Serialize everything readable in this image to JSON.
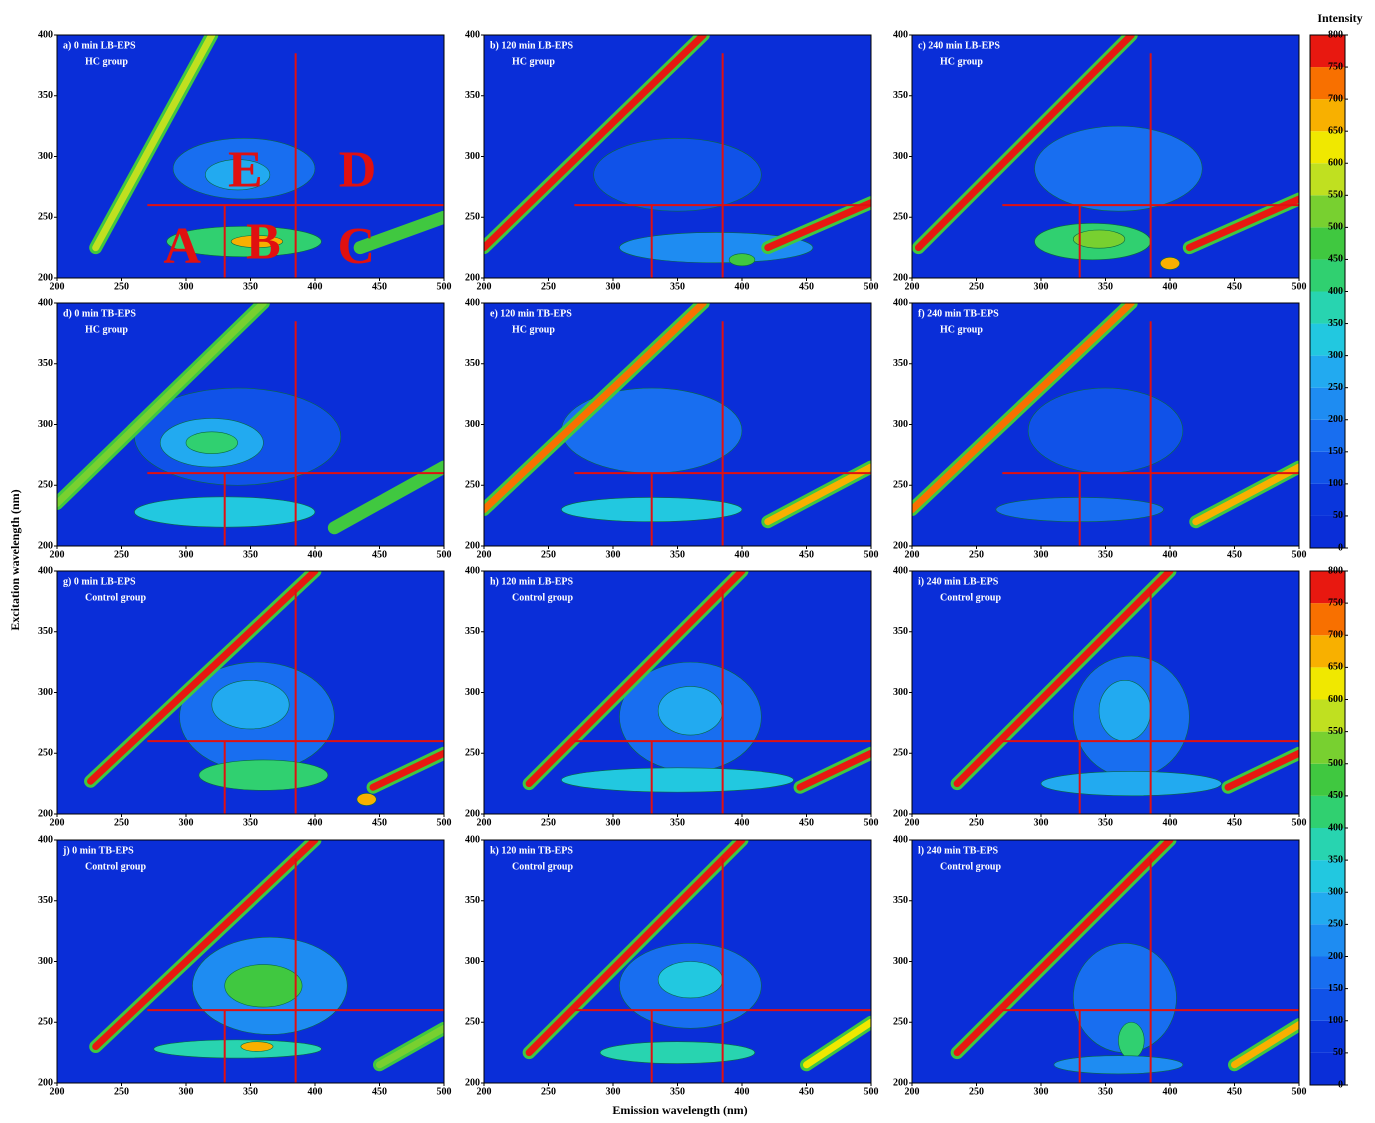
{
  "figure": {
    "xlabel": "Emission wavelength (nm)",
    "ylabel": "Excitation wavelength (nm)",
    "colorbar": {
      "title": "Intensity",
      "ticks": [
        0,
        50,
        100,
        150,
        200,
        250,
        300,
        350,
        400,
        450,
        500,
        550,
        600,
        650,
        700,
        750,
        800
      ],
      "colors": [
        "#0a2ed8",
        "#0a36dc",
        "#1052e8",
        "#186ef0",
        "#1e8cf2",
        "#22aaf0",
        "#22c8e0",
        "#28d4b0",
        "#30d070",
        "#40c840",
        "#78d030",
        "#c0e020",
        "#f0e800",
        "#f8b000",
        "#f87000",
        "#e81810"
      ]
    },
    "region_lines": [
      {
        "em": [
          270,
          500
        ],
        "ex": [
          260,
          260
        ]
      },
      {
        "em": [
          385,
          385
        ],
        "ex": [
          200,
          385
        ]
      },
      {
        "em": [
          330,
          330
        ],
        "ex": [
          200,
          260
        ]
      }
    ]
  },
  "chart_data": [
    {
      "type": "contour",
      "title": "a) 0 min LB-EPS",
      "subtitle": "HC group",
      "xlim": [
        200,
        500
      ],
      "ylim": [
        200,
        400
      ],
      "xticks": [
        200,
        250,
        300,
        350,
        400,
        450,
        500
      ],
      "yticks": [
        200,
        250,
        300,
        350,
        400
      ],
      "ridges": [
        {
          "em": [
            230,
            320
          ],
          "ex": [
            225,
            400
          ],
          "value": 550
        },
        {
          "em": [
            435,
            500
          ],
          "ex": [
            225,
            250
          ],
          "value": 450
        }
      ],
      "peaks": [
        {
          "em": 345,
          "ex": 290,
          "w": 110,
          "h": 50,
          "value": 150
        },
        {
          "em": 340,
          "ex": 285,
          "w": 50,
          "h": 25,
          "value": 250
        },
        {
          "em": 345,
          "ex": 230,
          "w": 120,
          "h": 25,
          "value": 400
        },
        {
          "em": 355,
          "ex": 230,
          "w": 40,
          "h": 10,
          "value": 650
        }
      ],
      "region_labels": [
        {
          "text": "A",
          "em": 297,
          "ex": 222
        },
        {
          "text": "B",
          "em": 360,
          "ex": 226
        },
        {
          "text": "C",
          "em": 432,
          "ex": 222
        },
        {
          "text": "E",
          "em": 346,
          "ex": 285
        },
        {
          "text": "D",
          "em": 433,
          "ex": 285
        }
      ]
    },
    {
      "type": "contour",
      "title": "b) 120 min LB-EPS",
      "subtitle": "HC group",
      "xlim": [
        200,
        500
      ],
      "ylim": [
        200,
        400
      ],
      "xticks": [
        200,
        250,
        300,
        350,
        400,
        450,
        500
      ],
      "yticks": [
        200,
        250,
        300,
        350,
        400
      ],
      "ridges": [
        {
          "em": [
            200,
            370
          ],
          "ex": [
            225,
            400
          ],
          "value": 800
        },
        {
          "em": [
            420,
            500
          ],
          "ex": [
            225,
            262
          ],
          "value": 800
        }
      ],
      "peaks": [
        {
          "em": 350,
          "ex": 285,
          "w": 130,
          "h": 60,
          "value": 120
        },
        {
          "em": 380,
          "ex": 225,
          "w": 150,
          "h": 25,
          "value": 200
        },
        {
          "em": 400,
          "ex": 215,
          "w": 20,
          "h": 10,
          "value": 450
        }
      ]
    },
    {
      "type": "contour",
      "title": "c) 240 min LB-EPS",
      "subtitle": "HC group",
      "xlim": [
        200,
        500
      ],
      "ylim": [
        200,
        400
      ],
      "xticks": [
        200,
        250,
        300,
        350,
        400,
        450,
        500
      ],
      "yticks": [
        200,
        250,
        300,
        350,
        400
      ],
      "ridges": [
        {
          "em": [
            205,
            370
          ],
          "ex": [
            225,
            400
          ],
          "value": 800
        },
        {
          "em": [
            415,
            500
          ],
          "ex": [
            225,
            265
          ],
          "value": 800
        }
      ],
      "peaks": [
        {
          "em": 360,
          "ex": 290,
          "w": 130,
          "h": 70,
          "value": 150
        },
        {
          "em": 340,
          "ex": 230,
          "w": 90,
          "h": 30,
          "value": 400
        },
        {
          "em": 345,
          "ex": 232,
          "w": 40,
          "h": 15,
          "value": 500
        },
        {
          "em": 400,
          "ex": 212,
          "w": 15,
          "h": 10,
          "value": 650
        }
      ]
    },
    {
      "type": "contour",
      "title": "d) 0 min TB-EPS",
      "subtitle": "HC group",
      "xlim": [
        200,
        500
      ],
      "ylim": [
        200,
        400
      ],
      "xticks": [
        200,
        250,
        300,
        350,
        400,
        450,
        500
      ],
      "yticks": [
        200,
        250,
        300,
        350,
        400
      ],
      "ridges": [
        {
          "em": [
            200,
            360
          ],
          "ex": [
            235,
            400
          ],
          "value": 500
        },
        {
          "em": [
            415,
            500
          ],
          "ex": [
            215,
            265
          ],
          "value": 450
        }
      ],
      "peaks": [
        {
          "em": 340,
          "ex": 290,
          "w": 160,
          "h": 80,
          "value": 120
        },
        {
          "em": 320,
          "ex": 285,
          "w": 80,
          "h": 40,
          "value": 250
        },
        {
          "em": 320,
          "ex": 285,
          "w": 40,
          "h": 18,
          "value": 400
        },
        {
          "em": 330,
          "ex": 228,
          "w": 140,
          "h": 25,
          "value": 300
        }
      ]
    },
    {
      "type": "contour",
      "title": "e) 120 min TB-EPS",
      "subtitle": "HC group",
      "xlim": [
        200,
        500
      ],
      "ylim": [
        200,
        400
      ],
      "xticks": [
        200,
        250,
        300,
        350,
        400,
        450,
        500
      ],
      "yticks": [
        200,
        250,
        300,
        350,
        400
      ],
      "ridges": [
        {
          "em": [
            200,
            370
          ],
          "ex": [
            230,
            400
          ],
          "value": 700
        },
        {
          "em": [
            420,
            500
          ],
          "ex": [
            220,
            265
          ],
          "value": 650
        }
      ],
      "peaks": [
        {
          "em": 330,
          "ex": 295,
          "w": 140,
          "h": 70,
          "value": 150
        },
        {
          "em": 330,
          "ex": 230,
          "w": 140,
          "h": 20,
          "value": 300
        }
      ]
    },
    {
      "type": "contour",
      "title": "f) 240 min TB-EPS",
      "subtitle": "HC group",
      "xlim": [
        200,
        500
      ],
      "ylim": [
        200,
        400
      ],
      "xticks": [
        200,
        250,
        300,
        350,
        400,
        450,
        500
      ],
      "yticks": [
        200,
        250,
        300,
        350,
        400
      ],
      "ridges": [
        {
          "em": [
            200,
            370
          ],
          "ex": [
            230,
            400
          ],
          "value": 700
        },
        {
          "em": [
            420,
            500
          ],
          "ex": [
            220,
            265
          ],
          "value": 650
        }
      ],
      "peaks": [
        {
          "em": 350,
          "ex": 295,
          "w": 120,
          "h": 70,
          "value": 120
        },
        {
          "em": 330,
          "ex": 230,
          "w": 130,
          "h": 20,
          "value": 150
        }
      ]
    },
    {
      "type": "contour",
      "title": "g) 0 min LB-EPS",
      "subtitle": "Control group",
      "xlim": [
        200,
        500
      ],
      "ylim": [
        200,
        400
      ],
      "xticks": [
        200,
        250,
        300,
        350,
        400,
        450,
        500
      ],
      "yticks": [
        200,
        250,
        300,
        350,
        400
      ],
      "ridges": [
        {
          "em": [
            226,
            400
          ],
          "ex": [
            227,
            400
          ],
          "value": 800
        },
        {
          "em": [
            445,
            500
          ],
          "ex": [
            222,
            250
          ],
          "value": 800
        }
      ],
      "peaks": [
        {
          "em": 355,
          "ex": 280,
          "w": 120,
          "h": 90,
          "value": 150
        },
        {
          "em": 350,
          "ex": 290,
          "w": 60,
          "h": 40,
          "value": 250
        },
        {
          "em": 360,
          "ex": 232,
          "w": 100,
          "h": 25,
          "value": 400
        },
        {
          "em": 440,
          "ex": 212,
          "w": 15,
          "h": 10,
          "value": 650
        }
      ]
    },
    {
      "type": "contour",
      "title": "h) 120 min LB-EPS",
      "subtitle": "Control group",
      "xlim": [
        200,
        500
      ],
      "ylim": [
        200,
        400
      ],
      "xticks": [
        200,
        250,
        300,
        350,
        400,
        450,
        500
      ],
      "yticks": [
        200,
        250,
        300,
        350,
        400
      ],
      "ridges": [
        {
          "em": [
            235,
            400
          ],
          "ex": [
            225,
            400
          ],
          "value": 800
        },
        {
          "em": [
            445,
            500
          ],
          "ex": [
            222,
            250
          ],
          "value": 800
        }
      ],
      "peaks": [
        {
          "em": 360,
          "ex": 280,
          "w": 110,
          "h": 90,
          "value": 150
        },
        {
          "em": 360,
          "ex": 285,
          "w": 50,
          "h": 40,
          "value": 250
        },
        {
          "em": 350,
          "ex": 228,
          "w": 180,
          "h": 20,
          "value": 300
        }
      ]
    },
    {
      "type": "contour",
      "title": "i) 240 min LB-EPS",
      "subtitle": "Control group",
      "xlim": [
        200,
        500
      ],
      "ylim": [
        200,
        400
      ],
      "xticks": [
        200,
        250,
        300,
        350,
        400,
        450,
        500
      ],
      "yticks": [
        200,
        250,
        300,
        350,
        400
      ],
      "ridges": [
        {
          "em": [
            235,
            400
          ],
          "ex": [
            225,
            400
          ],
          "value": 800
        },
        {
          "em": [
            445,
            500
          ],
          "ex": [
            222,
            250
          ],
          "value": 800
        }
      ],
      "peaks": [
        {
          "em": 370,
          "ex": 280,
          "w": 90,
          "h": 100,
          "value": 150
        },
        {
          "em": 365,
          "ex": 285,
          "w": 40,
          "h": 50,
          "value": 250
        },
        {
          "em": 370,
          "ex": 225,
          "w": 140,
          "h": 20,
          "value": 250
        }
      ]
    },
    {
      "type": "contour",
      "title": "j) 0 min TB-EPS",
      "subtitle": "Control group",
      "xlim": [
        200,
        500
      ],
      "ylim": [
        200,
        400
      ],
      "xticks": [
        200,
        250,
        300,
        350,
        400,
        450,
        500
      ],
      "yticks": [
        200,
        250,
        300,
        350,
        400
      ],
      "ridges": [
        {
          "em": [
            230,
            400
          ],
          "ex": [
            230,
            400
          ],
          "value": 750
        },
        {
          "em": [
            450,
            500
          ],
          "ex": [
            215,
            245
          ],
          "value": 500
        }
      ],
      "peaks": [
        {
          "em": 365,
          "ex": 280,
          "w": 120,
          "h": 80,
          "value": 200
        },
        {
          "em": 360,
          "ex": 280,
          "w": 60,
          "h": 35,
          "value": 450
        },
        {
          "em": 340,
          "ex": 228,
          "w": 130,
          "h": 15,
          "value": 350
        },
        {
          "em": 355,
          "ex": 230,
          "w": 25,
          "h": 8,
          "value": 650
        }
      ]
    },
    {
      "type": "contour",
      "title": "k) 120 min TB-EPS",
      "subtitle": "Control group",
      "xlim": [
        200,
        500
      ],
      "ylim": [
        200,
        400
      ],
      "xticks": [
        200,
        250,
        300,
        350,
        400,
        450,
        500
      ],
      "yticks": [
        200,
        250,
        300,
        350,
        400
      ],
      "ridges": [
        {
          "em": [
            235,
            400
          ],
          "ex": [
            225,
            400
          ],
          "value": 750
        },
        {
          "em": [
            450,
            500
          ],
          "ex": [
            215,
            250
          ],
          "value": 600
        }
      ],
      "peaks": [
        {
          "em": 360,
          "ex": 280,
          "w": 110,
          "h": 70,
          "value": 150
        },
        {
          "em": 360,
          "ex": 285,
          "w": 50,
          "h": 30,
          "value": 300
        },
        {
          "em": 350,
          "ex": 225,
          "w": 120,
          "h": 18,
          "value": 350
        }
      ]
    },
    {
      "type": "contour",
      "title": "l) 240 min TB-EPS",
      "subtitle": "Control group",
      "xlim": [
        200,
        500
      ],
      "ylim": [
        200,
        400
      ],
      "xticks": [
        200,
        250,
        300,
        350,
        400,
        450,
        500
      ],
      "yticks": [
        200,
        250,
        300,
        350,
        400
      ],
      "ridges": [
        {
          "em": [
            235,
            400
          ],
          "ex": [
            225,
            400
          ],
          "value": 750
        },
        {
          "em": [
            450,
            500
          ],
          "ex": [
            215,
            248
          ],
          "value": 650
        }
      ],
      "peaks": [
        {
          "em": 365,
          "ex": 270,
          "w": 80,
          "h": 90,
          "value": 150
        },
        {
          "em": 370,
          "ex": 235,
          "w": 20,
          "h": 30,
          "value": 400
        },
        {
          "em": 360,
          "ex": 215,
          "w": 100,
          "h": 15,
          "value": 200
        }
      ]
    }
  ]
}
